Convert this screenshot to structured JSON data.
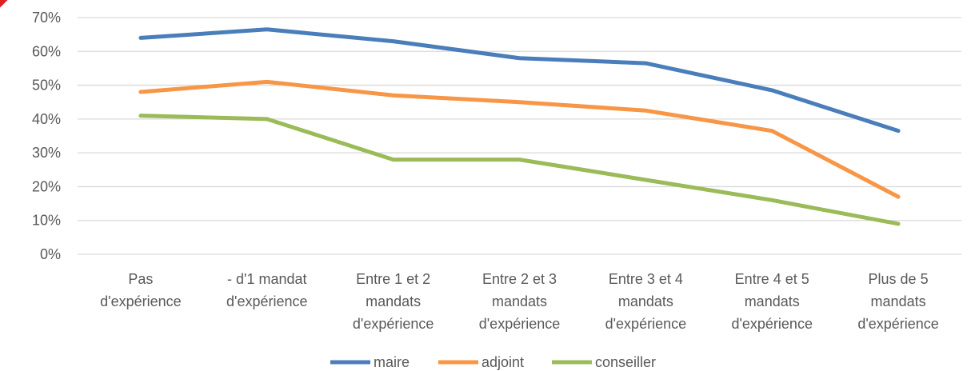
{
  "chart_data": {
    "type": "line",
    "categories": [
      [
        "Pas",
        "d'expérience"
      ],
      [
        "- d'1 mandat",
        "d'expérience"
      ],
      [
        "Entre 1 et 2",
        "mandats",
        "d'expérience"
      ],
      [
        "Entre 2 et 3",
        "mandats",
        "d'expérience"
      ],
      [
        "Entre 3 et 4",
        "mandats",
        "d'expérience"
      ],
      [
        "Entre 4 et 5",
        "mandats",
        "d'expérience"
      ],
      [
        "Plus de 5",
        "mandats",
        "d'expérience"
      ]
    ],
    "ylim": [
      0,
      70
    ],
    "yticks": [
      0,
      10,
      20,
      30,
      40,
      50,
      60,
      70
    ],
    "ytick_labels": [
      "0%",
      "10%",
      "20%",
      "30%",
      "40%",
      "50%",
      "60%",
      "70%"
    ],
    "grid": true,
    "legend_position": "bottom",
    "series": [
      {
        "name": "maire",
        "color": "#4a7ebb",
        "values": [
          64,
          66.5,
          63,
          58,
          56.5,
          48.5,
          36.5
        ]
      },
      {
        "name": "adjoint",
        "color": "#f79646",
        "values": [
          48,
          51,
          47,
          45,
          42.5,
          36.5,
          17
        ]
      },
      {
        "name": "conseiller",
        "color": "#9bbb59",
        "values": [
          41,
          40,
          28,
          28,
          22,
          16,
          9
        ]
      }
    ]
  }
}
